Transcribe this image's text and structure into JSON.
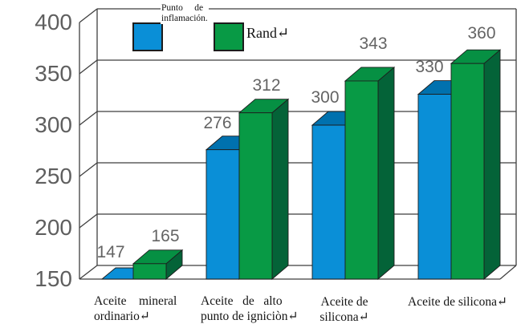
{
  "chart_data": {
    "type": "bar",
    "title": "",
    "categories": [
      "Aceite mineral ordinario",
      "Aceite de alto punto de igniciòn",
      "Aceite de silicona",
      "Aceite de silicona"
    ],
    "series": [
      {
        "name": "Punto de inflamación.",
        "values": [
          147,
          276,
          300,
          330
        ],
        "color": "#0a8fd7"
      },
      {
        "name": "Rand",
        "values": [
          165,
          312,
          343,
          360
        ],
        "color": "#089a45"
      }
    ],
    "ylim": [
      150,
      400
    ],
    "yticks": [
      400,
      350,
      300,
      250,
      200,
      150
    ],
    "grid": true,
    "legend_position": "top-inside",
    "xlabel": "",
    "ylabel": ""
  },
  "legend": {
    "series1_line1": "Punto     de",
    "series1_line2": "inflamación.",
    "series2": "Rand↵"
  },
  "category_labels": [
    {
      "lines": [
        "Aceite    mineral",
        "ordinario↵"
      ]
    },
    {
      "lines": [
        "Aceite   de   alto",
        "punto de igniciòn↵"
      ]
    },
    {
      "lines": [
        "Aceite de",
        "silicona↵"
      ]
    },
    {
      "lines": [
        "Aceite de silicona↵"
      ]
    }
  ],
  "colors": {
    "blue_front": "#0a8fd7",
    "blue_top": "#0071ae",
    "blue_side": "#01689f",
    "green_front": "#089a45",
    "green_top": "#069043",
    "green_side": "#046338",
    "grid": "#3f3f3f",
    "outline": "#1d1d1d",
    "tick_text": "#5f5f5f",
    "value_text": "#646464"
  }
}
